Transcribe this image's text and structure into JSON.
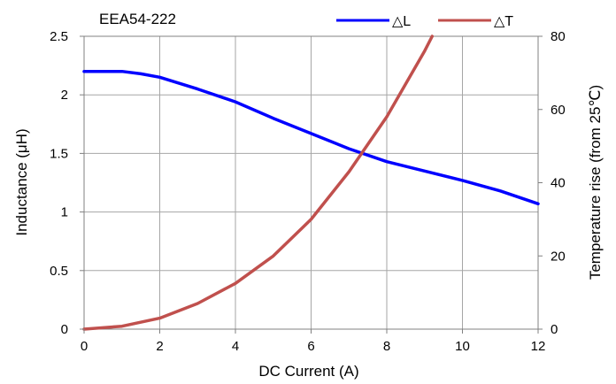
{
  "chart_data": {
    "type": "line",
    "title": "EEA54-222",
    "xlabel": "DC Current (A)",
    "ylabel": "Inductance (μH)",
    "y2label": "Temperature rise (from 25℃)",
    "xlim": [
      0,
      12
    ],
    "ylim": [
      0,
      2.5
    ],
    "y2lim": [
      0,
      80
    ],
    "xticks": [
      "0",
      "2",
      "4",
      "6",
      "8",
      "10",
      "12"
    ],
    "yticks": [
      "0",
      "0.5",
      "1",
      "1.5",
      "2",
      "2.5"
    ],
    "y2ticks": [
      "0",
      "20",
      "40",
      "60",
      "80"
    ],
    "grid": true,
    "legend_position": "top-right",
    "series": [
      {
        "name": "△L",
        "axis": "left",
        "color": "#0000ff",
        "x": [
          0,
          1,
          1.5,
          2,
          3,
          4,
          5,
          6,
          7,
          8,
          9,
          10,
          11,
          12
        ],
        "y": [
          2.2,
          2.2,
          2.18,
          2.15,
          2.05,
          1.94,
          1.8,
          1.67,
          1.54,
          1.43,
          1.35,
          1.27,
          1.18,
          1.07
        ]
      },
      {
        "name": "△T",
        "axis": "right",
        "color": "#c0504d",
        "x": [
          0,
          1,
          2,
          3,
          4,
          5,
          6,
          7,
          8,
          9,
          9.2
        ],
        "y": [
          0,
          0.8,
          3,
          7,
          12.5,
          20,
          30,
          43,
          58,
          76,
          80
        ]
      }
    ]
  }
}
